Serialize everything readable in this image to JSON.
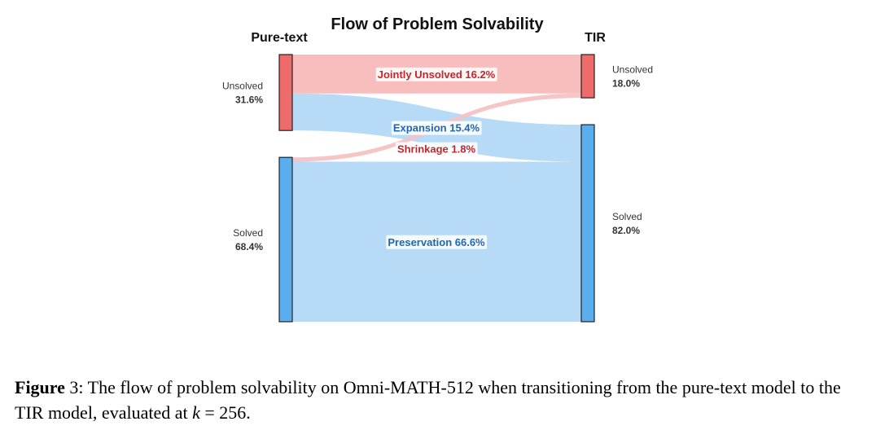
{
  "chart_data": {
    "type": "sankey",
    "title": "Flow of Problem Solvability",
    "left_header": "Pure-text",
    "right_header": "TIR",
    "left_nodes": [
      {
        "id": "pt_unsolved",
        "label": "Unsolved",
        "value": 31.6,
        "value_text": "31.6%",
        "color": "#ee6b6b"
      },
      {
        "id": "pt_solved",
        "label": "Solved",
        "value": 68.4,
        "value_text": "68.4%",
        "color": "#5aaeee"
      }
    ],
    "right_nodes": [
      {
        "id": "tir_unsolved",
        "label": "Unsolved",
        "value": 18.0,
        "value_text": "18.0%",
        "color": "#ee6b6b"
      },
      {
        "id": "tir_solved",
        "label": "Solved",
        "value": 82.0,
        "value_text": "82.0%",
        "color": "#5aaeee"
      }
    ],
    "flows": [
      {
        "source": "pt_unsolved",
        "target": "tir_unsolved",
        "value": 16.2,
        "label": "Jointly Unsolved 16.2%",
        "color": "#f8b9b9",
        "label_color": "#c0282d"
      },
      {
        "source": "pt_unsolved",
        "target": "tir_solved",
        "value": 15.4,
        "label": "Expansion 15.4%",
        "color": "#b3d9f7",
        "label_color": "#1f66b0"
      },
      {
        "source": "pt_solved",
        "target": "tir_unsolved",
        "value": 1.8,
        "label": "Shrinkage 1.8%",
        "color": "#f5c3c3",
        "label_color": "#c0282d"
      },
      {
        "source": "pt_solved",
        "target": "tir_solved",
        "value": 66.6,
        "label": "Preservation 66.6%",
        "color": "#b3d9f7",
        "label_color": "#1f66b0"
      }
    ]
  },
  "caption": {
    "label": "Figure",
    "number": "3:",
    "text_before_math": "The flow of problem solvability on Omni-MATH-512 when transitioning from the pure-text model to the TIR model, evaluated at ",
    "math_var": "k",
    "math_rest": " = 256."
  }
}
